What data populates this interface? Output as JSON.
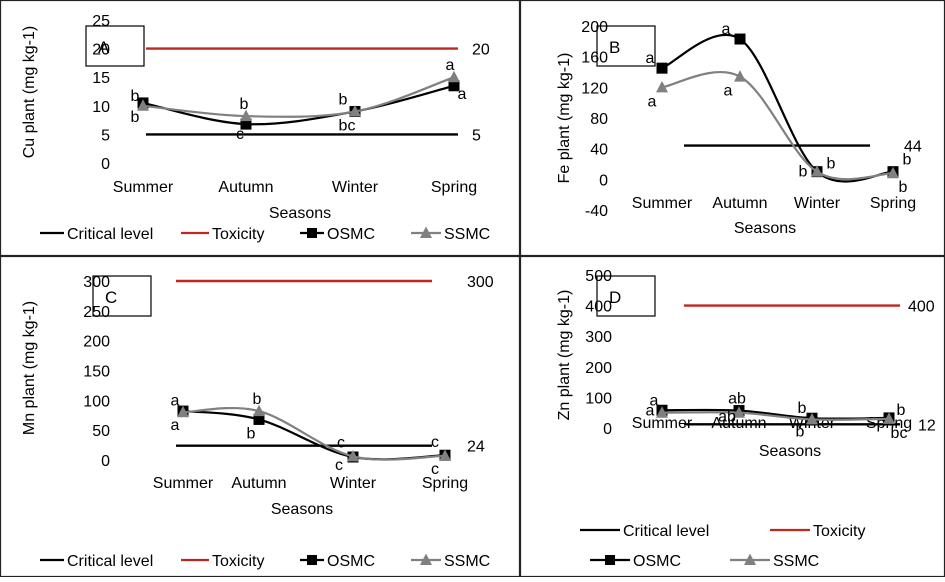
{
  "colors": {
    "critical": "#000000",
    "toxicity": "#c0271f",
    "osmc": "#000000",
    "ssmc": "#808080",
    "border": "#222222"
  },
  "chart_data": [
    {
      "panel": "A",
      "type": "line",
      "ylabel": "Cu plant (mg kg-1)",
      "xlabel": "Seasons",
      "categories": [
        "Summer",
        "Autumn",
        "Winter",
        "Spring"
      ],
      "ylim": [
        0,
        25
      ],
      "yticks": [
        0,
        5,
        10,
        15,
        20,
        25
      ],
      "critical_level": 5,
      "critical_label": "5",
      "toxicity": 20,
      "toxicity_label": "20",
      "series": [
        {
          "name": "OSMC",
          "values": [
            10.5,
            6.8,
            9.0,
            13.5
          ],
          "letters": [
            "b",
            "c",
            "bc",
            "a"
          ]
        },
        {
          "name": "SSMC",
          "values": [
            10.0,
            8.2,
            9.0,
            15.0
          ],
          "letters": [
            "b",
            "b",
            "b",
            "a"
          ]
        }
      ],
      "legend": [
        "Critical level",
        "Toxicity",
        "OSMC",
        "SSMC"
      ],
      "legend_position": "bottom"
    },
    {
      "panel": "B",
      "type": "line",
      "ylabel": "Fe plant (mg kg-1)",
      "xlabel": "Seasons",
      "categories": [
        "Summer",
        "Autumn",
        "Winter",
        "Spring"
      ],
      "ylim": [
        -40,
        200
      ],
      "yticks": [
        -40,
        0,
        40,
        80,
        120,
        160,
        200
      ],
      "critical_level": 44,
      "critical_label": "44",
      "series": [
        {
          "name": "OSMC",
          "values": [
            145,
            183,
            10,
            10
          ],
          "letters": [
            "a",
            "a",
            "b",
            "b"
          ]
        },
        {
          "name": "SSMC",
          "values": [
            120,
            134,
            10,
            8
          ],
          "letters": [
            "a",
            "a",
            "b",
            "b"
          ]
        }
      ]
    },
    {
      "panel": "C",
      "type": "line",
      "ylabel": "Mn plant (mg kg-1)",
      "xlabel": "Seasons",
      "categories": [
        "Summer",
        "Autumn",
        "Winter",
        "Spring"
      ],
      "ylim": [
        0,
        300
      ],
      "yticks": [
        0,
        50,
        100,
        150,
        200,
        250,
        300
      ],
      "critical_level": 24,
      "critical_label": "24",
      "toxicity": 300,
      "toxicity_label": "300",
      "series": [
        {
          "name": "OSMC",
          "values": [
            82,
            68,
            5,
            8
          ],
          "letters": [
            "a",
            "b",
            "c",
            "c"
          ]
        },
        {
          "name": "SSMC",
          "values": [
            80,
            82,
            6,
            7
          ],
          "letters": [
            "a",
            "b",
            "c",
            "c"
          ]
        }
      ],
      "legend": [
        "Critical level",
        "Toxicity",
        "OSMC",
        "SSMC"
      ],
      "legend_position": "bottom"
    },
    {
      "panel": "D",
      "type": "line",
      "ylabel": "Zn plant (mg kg-1)",
      "xlabel": "Seasons",
      "categories": [
        "Summer",
        "Autumn",
        "Winter",
        "Spring"
      ],
      "ylim": [
        0,
        500
      ],
      "yticks": [
        0,
        100,
        200,
        300,
        400,
        500
      ],
      "critical_level": 12,
      "critical_label": "12",
      "toxicity": 400,
      "toxicity_label": "400",
      "series": [
        {
          "name": "OSMC",
          "values": [
            58,
            57,
            32,
            33
          ],
          "letters": [
            "a",
            "ab",
            "b",
            "b"
          ]
        },
        {
          "name": "SSMC",
          "values": [
            50,
            50,
            28,
            30
          ],
          "letters": [
            "a",
            "ab",
            "b",
            "bc"
          ]
        }
      ],
      "legend": [
        "Critical level",
        "Toxicity",
        "OSMC",
        "SSMC"
      ],
      "legend_position": "bottom"
    }
  ]
}
